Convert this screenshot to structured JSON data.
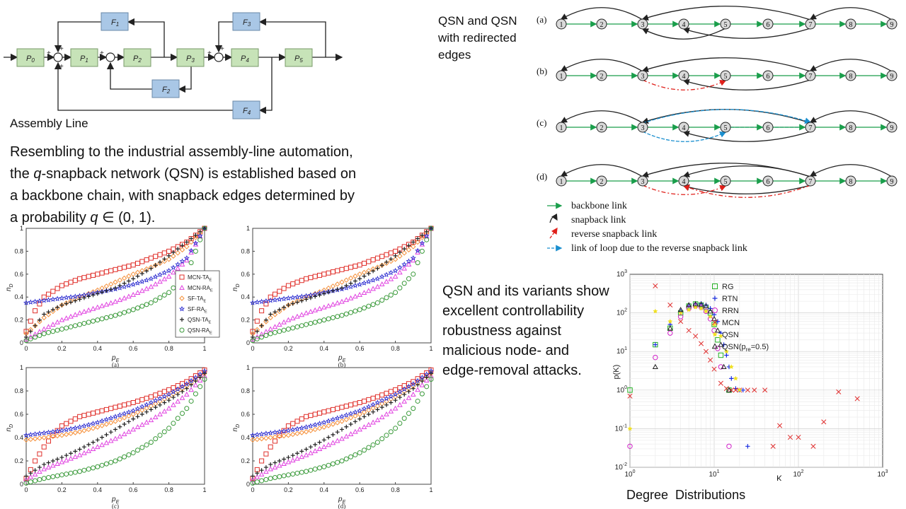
{
  "assembly": {
    "caption": "Assembly Line",
    "blocks": {
      "P0": "P",
      "P0s": "0",
      "P1": "P",
      "P1s": "1",
      "P2": "P",
      "P2s": "2",
      "P3": "P",
      "P3s": "3",
      "P4": "P",
      "P4s": "4",
      "P5": "P",
      "P5s": "5",
      "F1": "F",
      "F1s": "1",
      "F2": "F",
      "F2s": "2",
      "F3": "F",
      "F3s": "3",
      "F4": "F",
      "F4s": "4"
    },
    "plus": "+"
  },
  "intro": {
    "line1": "Resembling to the industrial assembly-line automation,",
    "line2a": "the ",
    "line2q": "q",
    "line2b": "-snapback network (QSN) is established based on",
    "line3": "a backbone chain, with snapback edges determined by",
    "line4a": "a probability ",
    "line4q": "q",
    "line4b": " ∈ (0, 1)."
  },
  "qsn_title": "QSN and QSN\nwith redirected\nedges",
  "qsn_diagram": {
    "panels": [
      "(a)",
      "(b)",
      "(c)",
      "(d)"
    ],
    "nodes": [
      "1",
      "2",
      "3",
      "4",
      "5",
      "6",
      "7",
      "8",
      "9"
    ],
    "legend": [
      "backbone link",
      "snapback link",
      "reverse snapback link",
      "link of loop due to the reverse snapback link"
    ],
    "colors": {
      "backbone": "#1a9e4b",
      "snapback": "#222222",
      "reverse": "#e0201b",
      "loop": "#1a8fcf"
    }
  },
  "robust_text": "QSN and its variants show\nexcellent controllability\nrobustness against\nmalicious node- and\nedge-removal attacks.",
  "degree_caption": "Degree  Distributions",
  "chart_data": [
    {
      "type": "scatter",
      "panel": "(a)",
      "xlabel": "p_E",
      "ylabel": "n_D",
      "xlim": [
        0,
        1
      ],
      "ylim": [
        0,
        1
      ],
      "xticks": [
        "0",
        "0.2",
        "0.4",
        "0.6",
        "0.8",
        "1"
      ],
      "yticks": [
        "0",
        "0.2",
        "0.4",
        "0.6",
        "0.8",
        "1"
      ],
      "legend": [
        "MCN-TA_E",
        "MCN-RA_E",
        "SF-TA_E",
        "SF-RA_E",
        "QSN-TA_E",
        "QSN-RA_E"
      ],
      "series": [
        {
          "name": "MCN-TA_E",
          "x": [
            0,
            0.05,
            0.1,
            0.2,
            0.3,
            0.4,
            0.5,
            0.6,
            0.7,
            0.8,
            0.9,
            1
          ],
          "y": [
            0.1,
            0.28,
            0.4,
            0.5,
            0.56,
            0.6,
            0.64,
            0.68,
            0.74,
            0.8,
            0.88,
            1
          ]
        },
        {
          "name": "MCN-RA_E",
          "x": [
            0,
            0.1,
            0.2,
            0.3,
            0.4,
            0.5,
            0.6,
            0.7,
            0.8,
            0.9,
            1
          ],
          "y": [
            0.03,
            0.12,
            0.2,
            0.26,
            0.31,
            0.36,
            0.42,
            0.49,
            0.58,
            0.72,
            1
          ]
        },
        {
          "name": "SF-TA_E",
          "x": [
            0,
            0.1,
            0.2,
            0.3,
            0.4,
            0.5,
            0.6,
            0.7,
            0.8,
            0.9,
            1
          ],
          "y": [
            0.08,
            0.22,
            0.33,
            0.4,
            0.46,
            0.53,
            0.6,
            0.66,
            0.73,
            0.84,
            1
          ]
        },
        {
          "name": "SF-RA_E",
          "x": [
            0,
            0.1,
            0.2,
            0.3,
            0.4,
            0.5,
            0.6,
            0.7,
            0.8,
            0.9,
            1
          ],
          "y": [
            0.35,
            0.37,
            0.39,
            0.41,
            0.44,
            0.47,
            0.51,
            0.56,
            0.63,
            0.74,
            1
          ]
        },
        {
          "name": "QSN-TA_E",
          "x": [
            0,
            0.05,
            0.1,
            0.2,
            0.3,
            0.4,
            0.5,
            0.6,
            0.7,
            0.8,
            0.9,
            1
          ],
          "y": [
            0.05,
            0.15,
            0.25,
            0.33,
            0.38,
            0.43,
            0.48,
            0.56,
            0.65,
            0.76,
            0.88,
            1
          ]
        },
        {
          "name": "QSN-RA_E",
          "x": [
            0,
            0.1,
            0.2,
            0.3,
            0.4,
            0.5,
            0.6,
            0.7,
            0.8,
            0.9,
            1
          ],
          "y": [
            0.02,
            0.08,
            0.12,
            0.16,
            0.2,
            0.24,
            0.29,
            0.35,
            0.44,
            0.6,
            1
          ]
        }
      ]
    },
    {
      "type": "scatter",
      "panel": "(b)",
      "xlabel": "p_E",
      "ylabel": "n_D",
      "xlim": [
        0,
        1
      ],
      "ylim": [
        0,
        1
      ],
      "series": [
        {
          "name": "MCN-TA_E",
          "x": [
            0,
            0.05,
            0.1,
            0.2,
            0.3,
            0.4,
            0.5,
            0.6,
            0.7,
            0.8,
            0.9,
            1
          ],
          "y": [
            0.1,
            0.28,
            0.4,
            0.5,
            0.56,
            0.6,
            0.64,
            0.68,
            0.74,
            0.8,
            0.88,
            1
          ]
        },
        {
          "name": "MCN-RA_E",
          "x": [
            0,
            0.1,
            0.2,
            0.3,
            0.4,
            0.5,
            0.6,
            0.7,
            0.8,
            0.9,
            1
          ],
          "y": [
            0.03,
            0.12,
            0.2,
            0.26,
            0.31,
            0.36,
            0.42,
            0.49,
            0.58,
            0.72,
            1
          ]
        },
        {
          "name": "SF-TA_E",
          "x": [
            0,
            0.1,
            0.2,
            0.3,
            0.4,
            0.5,
            0.6,
            0.7,
            0.8,
            0.9,
            1
          ],
          "y": [
            0.08,
            0.22,
            0.33,
            0.4,
            0.46,
            0.53,
            0.6,
            0.66,
            0.73,
            0.84,
            1
          ]
        },
        {
          "name": "SF-RA_E",
          "x": [
            0,
            0.1,
            0.2,
            0.3,
            0.4,
            0.5,
            0.6,
            0.7,
            0.8,
            0.9,
            1
          ],
          "y": [
            0.35,
            0.37,
            0.39,
            0.41,
            0.44,
            0.47,
            0.51,
            0.56,
            0.63,
            0.74,
            1
          ]
        },
        {
          "name": "QSN-TA_E",
          "x": [
            0,
            0.05,
            0.1,
            0.2,
            0.3,
            0.4,
            0.5,
            0.6,
            0.7,
            0.8,
            0.9,
            1
          ],
          "y": [
            0.05,
            0.15,
            0.25,
            0.33,
            0.38,
            0.43,
            0.48,
            0.56,
            0.65,
            0.76,
            0.88,
            1
          ]
        },
        {
          "name": "QSN-RA_E",
          "x": [
            0,
            0.1,
            0.2,
            0.3,
            0.4,
            0.5,
            0.6,
            0.7,
            0.8,
            0.9,
            1
          ],
          "y": [
            0.02,
            0.08,
            0.12,
            0.16,
            0.2,
            0.24,
            0.29,
            0.35,
            0.44,
            0.6,
            1
          ]
        }
      ]
    },
    {
      "type": "scatter",
      "panel": "(c)",
      "xlabel": "p_E",
      "ylabel": "n_D",
      "xlim": [
        0,
        1
      ],
      "ylim": [
        0,
        1
      ],
      "series": [
        {
          "name": "MCN-TA_E",
          "x": [
            0,
            0.05,
            0.1,
            0.15,
            0.2,
            0.3,
            0.4,
            0.5,
            0.6,
            0.7,
            0.8,
            0.9,
            1
          ],
          "y": [
            0.05,
            0.2,
            0.32,
            0.42,
            0.5,
            0.58,
            0.62,
            0.66,
            0.7,
            0.75,
            0.81,
            0.88,
            0.98
          ]
        },
        {
          "name": "MCN-RA_E",
          "x": [
            0,
            0.1,
            0.2,
            0.3,
            0.4,
            0.5,
            0.6,
            0.7,
            0.8,
            0.9,
            1
          ],
          "y": [
            0.04,
            0.13,
            0.19,
            0.25,
            0.32,
            0.39,
            0.47,
            0.55,
            0.65,
            0.77,
            0.93
          ]
        },
        {
          "name": "SF-TA_E",
          "x": [
            0,
            0.1,
            0.2,
            0.3,
            0.4,
            0.5,
            0.6,
            0.7,
            0.8,
            0.9,
            1
          ],
          "y": [
            0.38,
            0.4,
            0.42,
            0.45,
            0.49,
            0.54,
            0.6,
            0.67,
            0.75,
            0.84,
            0.95
          ]
        },
        {
          "name": "SF-RA_E",
          "x": [
            0,
            0.1,
            0.2,
            0.3,
            0.4,
            0.5,
            0.6,
            0.7,
            0.8,
            0.9,
            1
          ],
          "y": [
            0.42,
            0.44,
            0.46,
            0.49,
            0.53,
            0.58,
            0.63,
            0.7,
            0.77,
            0.86,
            0.97
          ]
        },
        {
          "name": "QSN-TA_E",
          "x": [
            0,
            0.1,
            0.2,
            0.3,
            0.4,
            0.5,
            0.6,
            0.7,
            0.8,
            0.9,
            1
          ],
          "y": [
            0.07,
            0.17,
            0.23,
            0.3,
            0.38,
            0.47,
            0.56,
            0.64,
            0.72,
            0.82,
            0.95
          ]
        },
        {
          "name": "QSN-RA_E",
          "x": [
            0,
            0.1,
            0.2,
            0.3,
            0.4,
            0.5,
            0.6,
            0.7,
            0.8,
            0.9,
            1
          ],
          "y": [
            0.01,
            0.05,
            0.08,
            0.11,
            0.15,
            0.2,
            0.27,
            0.36,
            0.48,
            0.65,
            0.9
          ]
        }
      ]
    },
    {
      "type": "scatter",
      "panel": "(d)",
      "xlabel": "p_E",
      "ylabel": "n_D",
      "xlim": [
        0,
        1
      ],
      "ylim": [
        0,
        1
      ],
      "series": [
        {
          "name": "MCN-TA_E",
          "x": [
            0,
            0.05,
            0.1,
            0.15,
            0.2,
            0.3,
            0.4,
            0.5,
            0.6,
            0.7,
            0.8,
            0.9,
            1
          ],
          "y": [
            0.05,
            0.2,
            0.32,
            0.42,
            0.5,
            0.58,
            0.62,
            0.66,
            0.7,
            0.75,
            0.81,
            0.88,
            0.98
          ]
        },
        {
          "name": "MCN-RA_E",
          "x": [
            0,
            0.1,
            0.2,
            0.3,
            0.4,
            0.5,
            0.6,
            0.7,
            0.8,
            0.9,
            1
          ],
          "y": [
            0.04,
            0.13,
            0.19,
            0.25,
            0.32,
            0.39,
            0.47,
            0.55,
            0.65,
            0.77,
            0.93
          ]
        },
        {
          "name": "SF-TA_E",
          "x": [
            0,
            0.1,
            0.2,
            0.3,
            0.4,
            0.5,
            0.6,
            0.7,
            0.8,
            0.9,
            1
          ],
          "y": [
            0.38,
            0.4,
            0.42,
            0.45,
            0.49,
            0.54,
            0.6,
            0.67,
            0.75,
            0.84,
            0.95
          ]
        },
        {
          "name": "SF-RA_E",
          "x": [
            0,
            0.1,
            0.2,
            0.3,
            0.4,
            0.5,
            0.6,
            0.7,
            0.8,
            0.9,
            1
          ],
          "y": [
            0.42,
            0.44,
            0.46,
            0.49,
            0.53,
            0.58,
            0.63,
            0.7,
            0.77,
            0.86,
            0.97
          ]
        },
        {
          "name": "QSN-TA_E",
          "x": [
            0,
            0.1,
            0.2,
            0.3,
            0.4,
            0.5,
            0.6,
            0.7,
            0.8,
            0.9,
            1
          ],
          "y": [
            0.07,
            0.17,
            0.23,
            0.3,
            0.38,
            0.47,
            0.56,
            0.64,
            0.72,
            0.82,
            0.95
          ]
        },
        {
          "name": "QSN-RA_E",
          "x": [
            0,
            0.1,
            0.2,
            0.3,
            0.4,
            0.5,
            0.6,
            0.7,
            0.8,
            0.9,
            1
          ],
          "y": [
            0.01,
            0.05,
            0.08,
            0.11,
            0.15,
            0.2,
            0.27,
            0.36,
            0.48,
            0.65,
            0.9
          ]
        }
      ]
    },
    {
      "type": "scatter",
      "xlabel": "K",
      "ylabel": "p(K)",
      "xscale": "log",
      "yscale": "log",
      "xlim": [
        1,
        1000
      ],
      "ylim": [
        0.01,
        1000
      ],
      "grid": true,
      "legend_position": "top-right",
      "legend": [
        "RG",
        "RTN",
        "RRN",
        "MCN",
        "QSN",
        "QSN(p_re=0.5)"
      ],
      "series": [
        {
          "name": "RG",
          "x": [
            1,
            2,
            3,
            4,
            5,
            6,
            7,
            8,
            9,
            10,
            11,
            12,
            15
          ],
          "y": [
            1,
            15,
            40,
            100,
            150,
            170,
            160,
            140,
            100,
            50,
            20,
            8,
            1
          ]
        },
        {
          "name": "RTN",
          "x": [
            2,
            3,
            4,
            5,
            6,
            7,
            8,
            9,
            10,
            11,
            12,
            13,
            14,
            15,
            16,
            18,
            20,
            22,
            25
          ],
          "y": [
            15,
            50,
            110,
            150,
            170,
            175,
            160,
            130,
            90,
            60,
            30,
            15,
            8,
            4,
            2,
            1.1,
            1,
            1,
            0.035
          ]
        },
        {
          "name": "RRN",
          "x": [
            1,
            2,
            3,
            4,
            5,
            6,
            7,
            8,
            9,
            10,
            11,
            12,
            15
          ],
          "y": [
            0.035,
            7,
            30,
            80,
            130,
            150,
            140,
            110,
            70,
            35,
            12,
            4,
            0.035
          ]
        },
        {
          "name": "MCN",
          "x": [
            1,
            2,
            3,
            4,
            5,
            6,
            7,
            8,
            9,
            10,
            12,
            14,
            16,
            18,
            20,
            25,
            30,
            40,
            50,
            60,
            80,
            100,
            150,
            200,
            300,
            500
          ],
          "y": [
            0.7,
            500,
            160,
            60,
            35,
            25,
            16,
            10,
            6,
            3.5,
            1.5,
            1.1,
            1,
            1,
            1,
            1,
            1,
            1,
            0.035,
            0.12,
            0.06,
            0.06,
            0.035,
            0.15,
            0.9,
            0.6
          ]
        },
        {
          "name": "QSN",
          "x": [
            1,
            2,
            3,
            4,
            5,
            6,
            7,
            8,
            9,
            10,
            12,
            14,
            16,
            18,
            20
          ],
          "y": [
            0.1,
            110,
            60,
            100,
            120,
            140,
            130,
            110,
            80,
            50,
            25,
            10,
            4,
            2,
            1
          ]
        },
        {
          "name": "QSN(p_re=0.5)",
          "x": [
            2,
            3,
            4,
            5,
            6,
            7,
            8,
            9,
            10,
            11,
            12,
            13,
            15
          ],
          "y": [
            4,
            40,
            120,
            160,
            170,
            165,
            150,
            110,
            70,
            35,
            15,
            4,
            1
          ]
        }
      ]
    }
  ]
}
